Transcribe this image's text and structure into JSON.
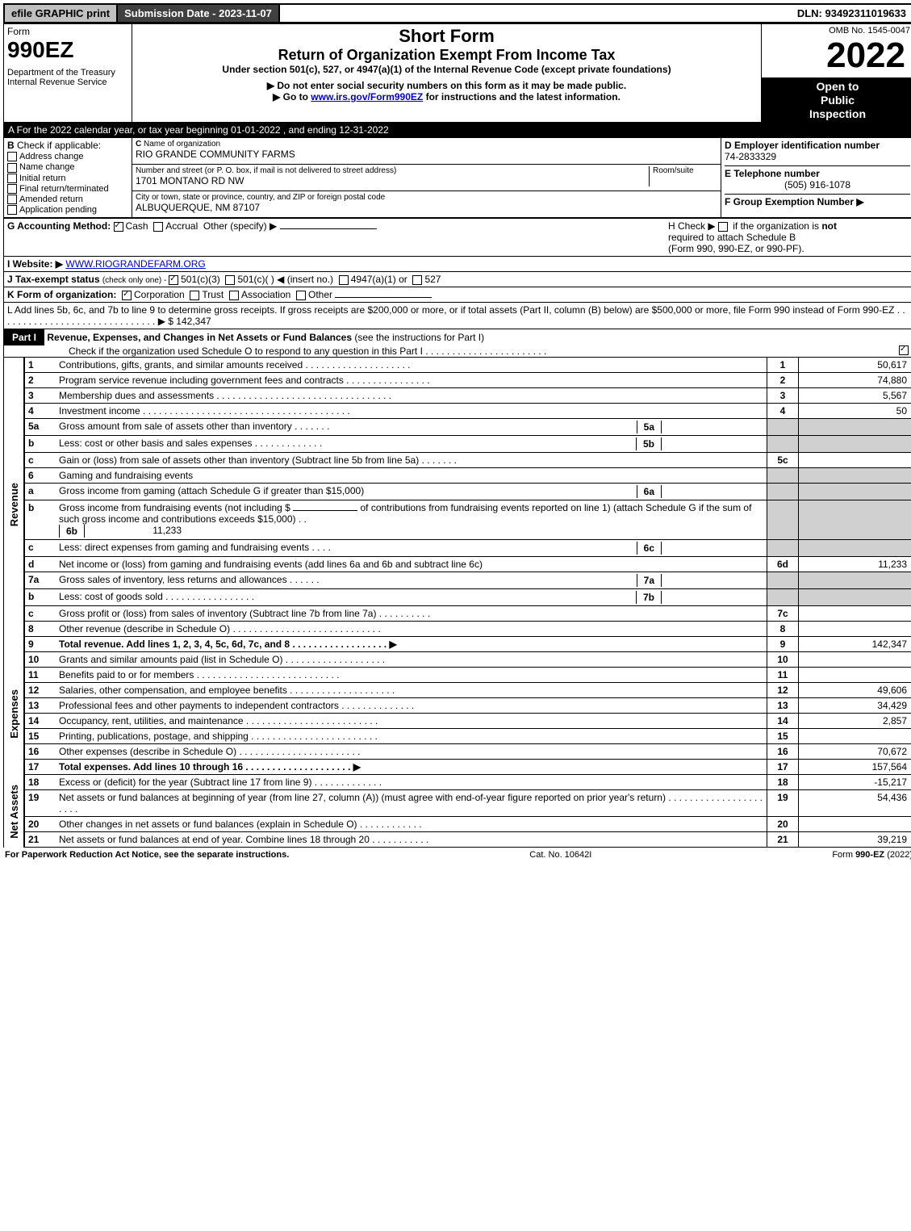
{
  "topbar": {
    "efile": "efile GRAPHIC print",
    "submission": "Submission Date - 2023-11-07",
    "dln": "DLN: 93492311019633"
  },
  "header": {
    "form_word": "Form",
    "form_num": "990EZ",
    "dept1": "Department of the Treasury",
    "dept2": "Internal Revenue Service",
    "title1": "Short Form",
    "title2": "Return of Organization Exempt From Income Tax",
    "subtitle": "Under section 501(c), 527, or 4947(a)(1) of the Internal Revenue Code (except private foundations)",
    "note1": "▶ Do not enter social security numbers on this form as it may be made public.",
    "note2_pre": "▶ Go to ",
    "note2_link": "www.irs.gov/Form990EZ",
    "note2_post": " for instructions and the latest information.",
    "omb": "OMB No. 1545-0047",
    "year": "2022",
    "badge1": "Open to",
    "badge2": "Public",
    "badge3": "Inspection"
  },
  "sectionA": "A  For the 2022 calendar year, or tax year beginning 01-01-2022 , and ending 12-31-2022",
  "B": {
    "label": "B",
    "check_label": "Check if applicable:",
    "items": [
      "Address change",
      "Name change",
      "Initial return",
      "Final return/terminated",
      "Amended return",
      "Application pending"
    ]
  },
  "C": {
    "label": "C",
    "name_label": "Name of organization",
    "name": "RIO GRANDE COMMUNITY FARMS",
    "street_label": "Number and street (or P. O. box, if mail is not delivered to street address)",
    "room_label": "Room/suite",
    "street": "1701 MONTANO RD NW",
    "city_label": "City or town, state or province, country, and ZIP or foreign postal code",
    "city": "ALBUQUERQUE, NM  87107"
  },
  "D": {
    "label": "D Employer identification number",
    "value": "74-2833329"
  },
  "E": {
    "label": "E Telephone number",
    "value": "(505) 916-1078"
  },
  "F": {
    "label": "F Group Exemption Number  ▶"
  },
  "G": {
    "label": "G Accounting Method:",
    "cash": "Cash",
    "accrual": "Accrual",
    "other": "Other (specify) ▶"
  },
  "H": {
    "line1_pre": "H  Check ▶ ",
    "line1_post": " if the organization is ",
    "line1_bold": "not",
    "line2": "required to attach Schedule B",
    "line3": "(Form 990, 990-EZ, or 990-PF)."
  },
  "I": {
    "label": "I Website: ▶",
    "value": "WWW.RIOGRANDEFARM.ORG"
  },
  "J": {
    "label": "J Tax-exempt status",
    "note": "(check only one) - ",
    "opt1": "501(c)(3)",
    "opt2": "501(c)(  ) ◀ (insert no.)",
    "opt3": "4947(a)(1) or",
    "opt4": "527"
  },
  "K": {
    "label": "K Form of organization:",
    "opts": [
      "Corporation",
      "Trust",
      "Association",
      "Other"
    ]
  },
  "L": {
    "text": "L Add lines 5b, 6c, and 7b to line 9 to determine gross receipts. If gross receipts are $200,000 or more, or if total assets (Part II, column (B) below) are $500,000 or more, file Form 990 instead of Form 990-EZ . . . . . . . . . . . . . . . . . . . . . . . . . . . . . . ▶ $",
    "value": "142,347"
  },
  "part1": {
    "label": "Part I",
    "title": "Revenue, Expenses, and Changes in Net Assets or Fund Balances",
    "title_note": "(see the instructions for Part I)",
    "check_note": "Check if the organization used Schedule O to respond to any question in this Part I . . . . . . . . . . . . . . . . . . . . . . .",
    "revenue_label": "Revenue",
    "expenses_label": "Expenses",
    "netassets_label": "Net Assets",
    "lines": {
      "1": {
        "n": "1",
        "d": "Contributions, gifts, grants, and similar amounts received . . . . . . . . . . . . . . . . . . . .",
        "ref": "1",
        "amt": "50,617"
      },
      "2": {
        "n": "2",
        "d": "Program service revenue including government fees and contracts . . . . . . . . . . . . . . . .",
        "ref": "2",
        "amt": "74,880"
      },
      "3": {
        "n": "3",
        "d": "Membership dues and assessments . . . . . . . . . . . . . . . . . . . . . . . . . . . . . . . . .",
        "ref": "3",
        "amt": "5,567"
      },
      "4": {
        "n": "4",
        "d": "Investment income . . . . . . . . . . . . . . . . . . . . . . . . . . . . . . . . . . . . . . .",
        "ref": "4",
        "amt": "50"
      },
      "5a": {
        "n": "5a",
        "d": "Gross amount from sale of assets other than inventory . . . . . . .",
        "box": "5a",
        "boxval": ""
      },
      "5b": {
        "n": "b",
        "d": "Less: cost or other basis and sales expenses . . . . . . . . . . . . .",
        "box": "5b",
        "boxval": ""
      },
      "5c": {
        "n": "c",
        "d": "Gain or (loss) from sale of assets other than inventory (Subtract line 5b from line 5a) . . . . . . .",
        "ref": "5c",
        "amt": ""
      },
      "6": {
        "n": "6",
        "d": "Gaming and fundraising events"
      },
      "6a": {
        "n": "a",
        "d": "Gross income from gaming (attach Schedule G if greater than $15,000)",
        "box": "6a",
        "boxval": ""
      },
      "6b": {
        "n": "b",
        "d1": "Gross income from fundraising events (not including $",
        "d2": "of contributions from fundraising events reported on line 1) (attach Schedule G if the sum of such gross income and contributions exceeds $15,000)  . .",
        "box": "6b",
        "boxval": "11,233"
      },
      "6c": {
        "n": "c",
        "d": "Less: direct expenses from gaming and fundraising events  . . . .",
        "box": "6c",
        "boxval": ""
      },
      "6d": {
        "n": "d",
        "d": "Net income or (loss) from gaming and fundraising events (add lines 6a and 6b and subtract line 6c)",
        "ref": "6d",
        "amt": "11,233"
      },
      "7a": {
        "n": "7a",
        "d": "Gross sales of inventory, less returns and allowances . . . . . .",
        "box": "7a",
        "boxval": ""
      },
      "7b": {
        "n": "b",
        "d": "Less: cost of goods sold      . . . . . . . . . . . . . . . . .",
        "box": "7b",
        "boxval": ""
      },
      "7c": {
        "n": "c",
        "d": "Gross profit or (loss) from sales of inventory (Subtract line 7b from line 7a) . . . . . . . . . .",
        "ref": "7c",
        "amt": ""
      },
      "8": {
        "n": "8",
        "d": "Other revenue (describe in Schedule O) . . . . . . . . . . . . . . . . . . . . . . . . . . . .",
        "ref": "8",
        "amt": ""
      },
      "9": {
        "n": "9",
        "d": "Total revenue. Add lines 1, 2, 3, 4, 5c, 6d, 7c, and 8 . . . . . . . . . . . . . . . . . . ▶",
        "ref": "9",
        "amt": "142,347",
        "bold": true
      },
      "10": {
        "n": "10",
        "d": "Grants and similar amounts paid (list in Schedule O) . . . . . . . . . . . . . . . . . . .",
        "ref": "10",
        "amt": ""
      },
      "11": {
        "n": "11",
        "d": "Benefits paid to or for members     . . . . . . . . . . . . . . . . . . . . . . . . . . .",
        "ref": "11",
        "amt": ""
      },
      "12": {
        "n": "12",
        "d": "Salaries, other compensation, and employee benefits . . . . . . . . . . . . . . . . . . . .",
        "ref": "12",
        "amt": "49,606"
      },
      "13": {
        "n": "13",
        "d": "Professional fees and other payments to independent contractors . . . . . . . . . . . . . .",
        "ref": "13",
        "amt": "34,429"
      },
      "14": {
        "n": "14",
        "d": "Occupancy, rent, utilities, and maintenance . . . . . . . . . . . . . . . . . . . . . . . . .",
        "ref": "14",
        "amt": "2,857"
      },
      "15": {
        "n": "15",
        "d": "Printing, publications, postage, and shipping . . . . . . . . . . . . . . . . . . . . . . . .",
        "ref": "15",
        "amt": ""
      },
      "16": {
        "n": "16",
        "d": "Other expenses (describe in Schedule O)    . . . . . . . . . . . . . . . . . . . . . . .",
        "ref": "16",
        "amt": "70,672"
      },
      "17": {
        "n": "17",
        "d": "Total expenses. Add lines 10 through 16    . . . . . . . . . . . . . . . . . . . . ▶",
        "ref": "17",
        "amt": "157,564",
        "bold": true
      },
      "18": {
        "n": "18",
        "d": "Excess or (deficit) for the year (Subtract line 17 from line 9)     . . . . . . . . . . . . .",
        "ref": "18",
        "amt": "-15,217"
      },
      "19": {
        "n": "19",
        "d": "Net assets or fund balances at beginning of year (from line 27, column (A)) (must agree with end-of-year figure reported on prior year's return) . . . . . . . . . . . . . . . . . . . . . .",
        "ref": "19",
        "amt": "54,436"
      },
      "20": {
        "n": "20",
        "d": "Other changes in net assets or fund balances (explain in Schedule O) . . . . . . . . . . . .",
        "ref": "20",
        "amt": ""
      },
      "21": {
        "n": "21",
        "d": "Net assets or fund balances at end of year. Combine lines 18 through 20 . . . . . . . . . . .",
        "ref": "21",
        "amt": "39,219"
      }
    }
  },
  "footer": {
    "left": "For Paperwork Reduction Act Notice, see the separate instructions.",
    "center": "Cat. No. 10642I",
    "right_pre": "Form ",
    "right_bold": "990-EZ",
    "right_post": " (2022)"
  }
}
